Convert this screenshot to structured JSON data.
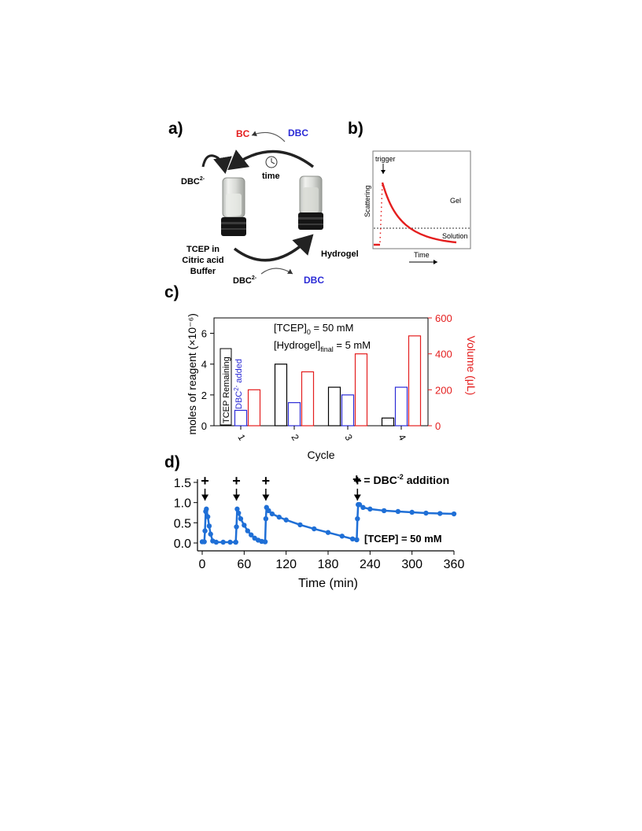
{
  "panel_labels": {
    "a": "a)",
    "b": "b)",
    "c": "c)",
    "d": "d)"
  },
  "panel_a": {
    "bc": "BC",
    "dbc_top": "DBC",
    "time": "time",
    "dbc2_left": "DBC",
    "dbc2_left_sup": "2-",
    "tcep_line1": "TCEP in",
    "tcep_line2": "Citric acid",
    "tcep_line3": "Buffer",
    "hydrogel": "Hydrogel",
    "dbc2_bottom": "DBC",
    "dbc2_bottom_sup": "2-",
    "dbc_bottom": "DBC",
    "colors": {
      "bc": "#e41e1e",
      "dbc": "#2b2bd6"
    }
  },
  "panel_b": {
    "trigger": "trigger",
    "ylabel": "Scattering",
    "xlabel": "Time",
    "gel": "Gel",
    "solution": "Solution",
    "curve_color": "#e41e1e"
  },
  "panel_c": {
    "annotation1_main": "[TCEP]",
    "annotation1_sub": "0",
    "annotation1_rest": " = 50 mM",
    "annotation2_main": "[Hydrogel]",
    "annotation2_sub": "final",
    "annotation2_rest": " = 5 mM",
    "legend_tcep": "TCEP Remaining",
    "legend_dbc_main": "DBC",
    "legend_dbc_sup": "2-",
    "legend_dbc_rest": " added",
    "colors": {
      "tcep": "#000000",
      "dbc": "#2b2bd6",
      "volume": "#e41e1e"
    }
  },
  "panel_d": {
    "legend_plus": "+",
    "legend_text_main": " = DBC",
    "legend_text_sup": "-2",
    "legend_text_rest": " addition",
    "tcep_label": "[TCEP] = 50 mM",
    "line_color": "#1f6fd6"
  },
  "chart_data": [
    {
      "type": "bar",
      "categories": [
        "1",
        "2",
        "3",
        "4"
      ],
      "xlabel": "Cycle",
      "ylabel": "moles of reagent (×10⁻⁶)",
      "ylim": [
        0,
        7
      ],
      "yticks": [
        0,
        2,
        4,
        6
      ],
      "y2label": "Volume (μL)",
      "y2lim": [
        0,
        600
      ],
      "y2ticks": [
        0,
        200,
        400,
        600
      ],
      "series": [
        {
          "name": "TCEP Remaining",
          "axis": "left",
          "values": [
            null,
            4.0,
            2.5,
            0.5
          ]
        },
        {
          "name": "DBC2- added",
          "axis": "left",
          "values": [
            1.0,
            1.5,
            2.0,
            2.5
          ]
        },
        {
          "name": "Volume",
          "axis": "right",
          "values": [
            200,
            300,
            400,
            500
          ]
        }
      ]
    },
    {
      "type": "line",
      "xlabel": "Time (min)",
      "ylabel": "",
      "xlim": [
        0,
        360
      ],
      "ylim": [
        0,
        1.5
      ],
      "xticks": [
        0,
        60,
        120,
        180,
        240,
        300,
        360
      ],
      "yticks": [
        0.0,
        0.5,
        1.0,
        1.5
      ],
      "xtick_labels": [
        "0",
        "60",
        "120",
        "180",
        "240",
        "300",
        "360"
      ],
      "ytick_labels": [
        "0.0",
        "0.5",
        "1.0",
        "1.5"
      ],
      "addition_times": [
        4,
        49,
        91,
        222
      ],
      "series": [
        {
          "x": [
            0,
            3,
            4,
            5,
            6,
            8,
            10,
            12,
            15,
            20,
            30,
            40,
            48
          ],
          "y": [
            0.03,
            0.03,
            0.3,
            0.78,
            0.84,
            0.65,
            0.42,
            0.22,
            0.05,
            0.02,
            0.02,
            0.02,
            0.02
          ]
        },
        {
          "x": [
            48,
            49,
            50,
            52,
            55,
            60,
            65,
            70,
            75,
            80,
            85,
            90
          ],
          "y": [
            0.02,
            0.4,
            0.84,
            0.74,
            0.6,
            0.44,
            0.3,
            0.2,
            0.12,
            0.07,
            0.04,
            0.03
          ]
        },
        {
          "x": [
            90,
            91,
            92,
            95,
            100,
            110,
            120,
            140,
            160,
            180,
            200,
            215,
            221
          ],
          "y": [
            0.03,
            0.6,
            0.88,
            0.8,
            0.72,
            0.64,
            0.57,
            0.45,
            0.35,
            0.26,
            0.17,
            0.1,
            0.08
          ]
        },
        {
          "x": [
            221,
            222,
            223,
            225,
            230,
            240,
            260,
            280,
            300,
            320,
            340,
            360
          ],
          "y": [
            0.08,
            0.6,
            0.95,
            0.95,
            0.88,
            0.84,
            0.8,
            0.78,
            0.76,
            0.74,
            0.73,
            0.72
          ]
        }
      ]
    }
  ]
}
